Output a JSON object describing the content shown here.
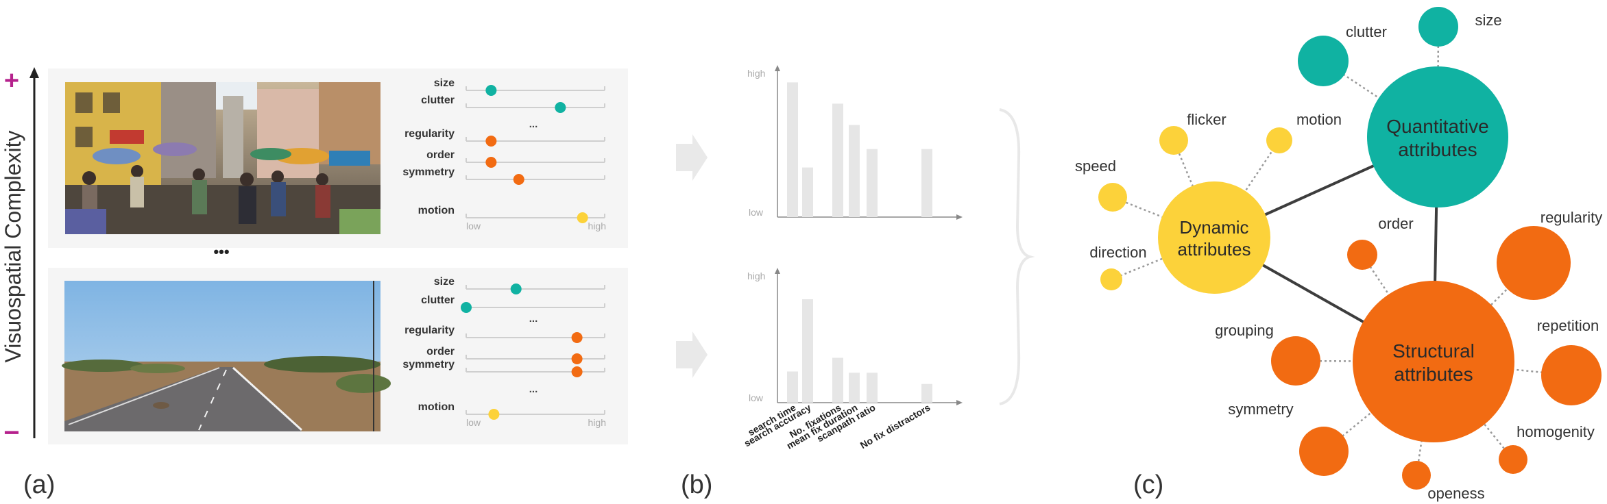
{
  "panel_a": {
    "label": "(a)",
    "axis_label": "Visuospatial Complexity",
    "plus_sign": "+",
    "minus_sign": "−",
    "between_ellipsis": "•••",
    "scale_low": "low",
    "scale_high": "high",
    "rows": [
      {
        "photo": "busy-street-scene",
        "sliders": [
          {
            "label": "size",
            "value": 0.18,
            "color": "#10b2a2"
          },
          {
            "label": "clutter",
            "value": 0.68,
            "color": "#10b2a2"
          },
          {
            "label": "...",
            "ellipsis": true
          },
          {
            "label": "regularity",
            "value": 0.18,
            "color": "#f26b12"
          },
          {
            "label": "order",
            "value": 0.18,
            "color": "#f26b12"
          },
          {
            "label": "symmetry",
            "value": 0.38,
            "color": "#f26b12"
          },
          {
            "label": "motion",
            "value": 0.84,
            "color": "#fcd23a"
          }
        ]
      },
      {
        "photo": "open-road-landscape",
        "sliders": [
          {
            "label": "size",
            "value": 0.36,
            "color": "#10b2a2"
          },
          {
            "label": "clutter",
            "value": 0.0,
            "color": "#10b2a2"
          },
          {
            "label": "...",
            "ellipsis": true
          },
          {
            "label": "regularity",
            "value": 0.8,
            "color": "#f26b12"
          },
          {
            "label": "order",
            "value": 0.8,
            "color": "#f26b12"
          },
          {
            "label": "symmetry",
            "value": 0.8,
            "color": "#f26b12"
          },
          {
            "label": "...",
            "ellipsis": true
          },
          {
            "label": "motion",
            "value": 0.2,
            "color": "#fcd23a"
          }
        ]
      }
    ]
  },
  "panel_b": {
    "label": "(b)",
    "axis_high": "high",
    "axis_low": "low",
    "metrics": [
      "search time",
      "search accuracy",
      "No. fixations",
      "mean fix duration",
      "scanpath ratio",
      "No fix distractors"
    ],
    "charts": [
      {
        "values": [
          0.95,
          0.35,
          0.8,
          0.65,
          0.48,
          0.48
        ]
      },
      {
        "values": [
          0.25,
          0.83,
          0.36,
          0.24,
          0.24,
          0.15
        ]
      }
    ]
  },
  "panel_c": {
    "label": "(c)",
    "colors": {
      "quantitative": "#10b2a2",
      "dynamic": "#fcd23a",
      "structural": "#f26b12"
    },
    "hubs": {
      "quantitative": {
        "line1": "Quantitative",
        "line2": "attributes"
      },
      "dynamic": {
        "line1": "Dynamic",
        "line2": "attributes"
      },
      "structural": {
        "line1": "Structural",
        "line2": "attributes"
      }
    },
    "quantitative_leaves": [
      "clutter",
      "size"
    ],
    "dynamic_leaves": [
      "flicker",
      "motion",
      "speed",
      "direction"
    ],
    "structural_leaves": [
      "order",
      "regularity",
      "grouping",
      "repetition",
      "symmetry",
      "homogenity",
      "openess"
    ]
  }
}
